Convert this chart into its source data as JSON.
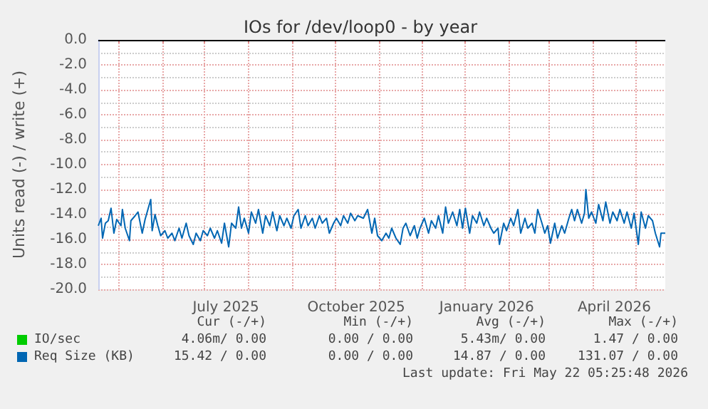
{
  "chart_data": {
    "type": "line",
    "title": "IOs for /dev/loop0 - by year",
    "ylabel": "Units read (-) / write (+)",
    "x": [
      "2025-04-17",
      "2025-04-19",
      "2025-04-20",
      "2025-04-22",
      "2025-04-24",
      "2025-04-26",
      "2025-04-28",
      "2025-04-30",
      "2025-05-03",
      "2025-05-04",
      "2025-05-06",
      "2025-05-09",
      "2025-05-10",
      "2025-05-13",
      "2025-05-15",
      "2025-05-18",
      "2025-05-20",
      "2025-05-22",
      "2025-05-24",
      "2025-05-25",
      "2025-05-27",
      "2025-05-29",
      "2025-05-31",
      "2025-06-03",
      "2025-06-05",
      "2025-06-08",
      "2025-06-10",
      "2025-06-13",
      "2025-06-15",
      "2025-06-18",
      "2025-06-20",
      "2025-06-23",
      "2025-06-25",
      "2025-06-28",
      "2025-06-30",
      "2025-07-03",
      "2025-07-05",
      "2025-07-08",
      "2025-07-10",
      "2025-07-13",
      "2025-07-15",
      "2025-07-18",
      "2025-07-20",
      "2025-07-23",
      "2025-07-25",
      "2025-07-27",
      "2025-07-29",
      "2025-08-01",
      "2025-08-03",
      "2025-08-06",
      "2025-08-08",
      "2025-08-11",
      "2025-08-13",
      "2025-08-16",
      "2025-08-18",
      "2025-08-21",
      "2025-08-23",
      "2025-08-26",
      "2025-08-28",
      "2025-08-31",
      "2025-09-02",
      "2025-09-05",
      "2025-09-07",
      "2025-09-10",
      "2025-09-12",
      "2025-09-15",
      "2025-09-17",
      "2025-09-20",
      "2025-09-22",
      "2025-09-25",
      "2025-09-27",
      "2025-09-30",
      "2025-10-02",
      "2025-10-05",
      "2025-10-07",
      "2025-10-10",
      "2025-10-12",
      "2025-10-15",
      "2025-10-17",
      "2025-10-21",
      "2025-10-24",
      "2025-10-27",
      "2025-10-29",
      "2025-10-31",
      "2025-11-03",
      "2025-11-06",
      "2025-11-08",
      "2025-11-10",
      "2025-11-13",
      "2025-11-16",
      "2025-11-18",
      "2025-11-20",
      "2025-11-23",
      "2025-11-26",
      "2025-11-28",
      "2025-11-30",
      "2025-12-03",
      "2025-12-06",
      "2025-12-08",
      "2025-12-11",
      "2025-12-13",
      "2025-12-16",
      "2025-12-18",
      "2025-12-20",
      "2025-12-23",
      "2025-12-26",
      "2025-12-28",
      "2025-12-30",
      "2026-01-01",
      "2026-01-04",
      "2026-01-06",
      "2026-01-09",
      "2026-01-11",
      "2026-01-14",
      "2026-01-16",
      "2026-01-19",
      "2026-01-21",
      "2026-01-24",
      "2026-01-25",
      "2026-01-28",
      "2026-01-30",
      "2026-02-02",
      "2026-02-04",
      "2026-02-07",
      "2026-02-09",
      "2026-02-12",
      "2026-02-14",
      "2026-02-17",
      "2026-02-19",
      "2026-02-21",
      "2026-02-24",
      "2026-02-26",
      "2026-02-28",
      "2026-03-02",
      "2026-03-05",
      "2026-03-07",
      "2026-03-10",
      "2026-03-12",
      "2026-03-15",
      "2026-03-17",
      "2026-03-19",
      "2026-03-21",
      "2026-03-24",
      "2026-03-26",
      "2026-03-27",
      "2026-03-29",
      "2026-03-31",
      "2026-04-03",
      "2026-04-05",
      "2026-04-08",
      "2026-04-10",
      "2026-04-13",
      "2026-04-15",
      "2026-04-18",
      "2026-04-20",
      "2026-04-23",
      "2026-04-25",
      "2026-04-28",
      "2026-04-30",
      "2026-05-03",
      "2026-05-05",
      "2026-05-08",
      "2026-05-10",
      "2026-05-13",
      "2026-05-15",
      "2026-05-18",
      "2026-05-19",
      "2026-05-22"
    ],
    "series": [
      {
        "name": "IO/sec",
        "color": "#00cc00",
        "values": [
          null,
          null,
          null,
          null,
          null,
          null,
          null,
          null,
          null,
          null,
          null,
          null,
          null,
          null,
          null,
          null,
          null,
          null,
          null,
          null,
          null,
          null,
          null,
          null,
          null,
          null,
          null,
          null,
          null,
          null,
          null,
          null,
          null,
          null,
          null,
          null,
          null,
          null,
          null,
          null,
          null,
          null,
          null,
          null,
          null,
          null,
          null,
          null,
          null,
          null,
          null,
          null,
          null,
          null,
          null,
          null,
          null,
          null,
          null,
          null,
          null,
          null,
          null,
          null,
          null,
          null,
          null,
          null,
          null,
          null,
          null,
          null,
          null,
          null,
          null,
          null,
          null,
          null,
          null,
          null,
          null,
          null,
          null,
          null,
          null,
          null,
          null,
          null,
          null,
          null,
          null,
          null,
          null,
          null,
          null,
          null,
          null,
          null,
          null,
          null,
          null,
          null,
          null,
          null,
          null,
          null,
          null,
          null,
          null,
          null,
          null,
          null,
          null,
          null,
          null,
          null,
          null,
          null,
          null,
          null,
          null,
          null,
          null,
          null,
          null,
          null,
          null,
          null,
          null,
          null,
          null,
          null,
          null,
          null,
          null,
          null,
          null,
          null,
          null,
          null,
          null,
          null,
          null,
          null,
          null,
          null,
          null,
          null,
          null,
          null,
          null,
          null,
          null,
          null,
          null,
          null,
          null,
          null,
          null,
          null,
          null,
          null,
          null,
          null,
          null,
          null,
          null,
          null
        ]
      },
      {
        "name": "Req Size (KB)",
        "color": "#0066b3",
        "values": [
          -14.9,
          -14.3,
          -15.9,
          -14.7,
          -14.5,
          -13.5,
          -15.5,
          -14.4,
          -14.9,
          -13.6,
          -15.1,
          -16.1,
          -14.5,
          -14.1,
          -13.8,
          -15.5,
          -14.4,
          -13.6,
          -12.8,
          -15.3,
          -14.0,
          -14.9,
          -15.7,
          -15.3,
          -15.9,
          -15.5,
          -16.1,
          -15.1,
          -15.9,
          -14.7,
          -15.7,
          -16.4,
          -15.5,
          -16.1,
          -15.3,
          -15.7,
          -15.1,
          -15.9,
          -15.3,
          -16.3,
          -14.7,
          -16.6,
          -14.7,
          -15.1,
          -13.4,
          -15.1,
          -14.3,
          -15.5,
          -13.8,
          -14.7,
          -13.6,
          -15.5,
          -14.1,
          -14.9,
          -13.8,
          -15.3,
          -14.1,
          -14.9,
          -14.3,
          -15.1,
          -14.1,
          -13.6,
          -15.1,
          -14.1,
          -14.9,
          -14.3,
          -15.1,
          -14.1,
          -14.7,
          -14.3,
          -15.5,
          -14.7,
          -14.3,
          -14.9,
          -14.1,
          -14.7,
          -13.9,
          -14.5,
          -14.1,
          -14.3,
          -13.6,
          -15.5,
          -14.3,
          -15.7,
          -16.1,
          -15.5,
          -15.9,
          -15.1,
          -15.9,
          -16.4,
          -15.1,
          -14.7,
          -15.7,
          -14.9,
          -15.9,
          -15.1,
          -14.3,
          -15.5,
          -14.5,
          -15.1,
          -14.1,
          -15.5,
          -13.4,
          -14.7,
          -13.8,
          -14.9,
          -13.6,
          -15.1,
          -13.5,
          -15.5,
          -14.1,
          -14.7,
          -13.8,
          -14.9,
          -14.3,
          -15.1,
          -15.5,
          -15.1,
          -16.4,
          -14.7,
          -15.3,
          -14.3,
          -14.9,
          -13.6,
          -15.5,
          -14.3,
          -15.1,
          -14.7,
          -15.5,
          -13.6,
          -14.7,
          -15.5,
          -14.9,
          -16.3,
          -14.7,
          -15.9,
          -14.9,
          -15.5,
          -14.3,
          -13.6,
          -14.5,
          -13.6,
          -14.7,
          -13.9,
          -12.0,
          -14.3,
          -13.8,
          -14.7,
          -13.2,
          -14.5,
          -13.0,
          -14.7,
          -13.8,
          -14.5,
          -13.6,
          -14.7,
          -13.8,
          -15.1,
          -13.9,
          -16.4,
          -13.8,
          -15.1,
          -14.1,
          -14.5,
          -15.5,
          -16.6,
          -15.5,
          -15.5
        ]
      }
    ],
    "xlim": [
      "2025-04-17",
      "2026-05-22"
    ],
    "xticks": [
      {
        "value": "2025-05-01",
        "label": null
      },
      {
        "value": "2025-06-01",
        "label": null
      },
      {
        "value": "2025-07-01",
        "label": null
      },
      {
        "value": "2025-07-16",
        "label": "July 2025"
      },
      {
        "value": "2025-08-01",
        "label": null
      },
      {
        "value": "2025-09-01",
        "label": null
      },
      {
        "value": "2025-10-01",
        "label": null
      },
      {
        "value": "2025-10-16",
        "label": "October 2025"
      },
      {
        "value": "2025-11-01",
        "label": null
      },
      {
        "value": "2025-12-01",
        "label": null
      },
      {
        "value": "2026-01-01",
        "label": null
      },
      {
        "value": "2026-01-16",
        "label": "January 2026"
      },
      {
        "value": "2026-02-01",
        "label": null
      },
      {
        "value": "2026-03-01",
        "label": null
      },
      {
        "value": "2026-04-01",
        "label": null
      },
      {
        "value": "2026-04-16",
        "label": "April 2026"
      },
      {
        "value": "2026-05-01",
        "label": null
      }
    ],
    "ylim": [
      -20,
      0
    ],
    "yticks": [
      {
        "value": -20,
        "label": "-20.0"
      },
      {
        "value": -19,
        "label": null
      },
      {
        "value": -18,
        "label": "-18.0"
      },
      {
        "value": -17,
        "label": null
      },
      {
        "value": -16,
        "label": "-16.0"
      },
      {
        "value": -15,
        "label": null
      },
      {
        "value": -14,
        "label": "-14.0"
      },
      {
        "value": -13,
        "label": null
      },
      {
        "value": -12,
        "label": "-12.0"
      },
      {
        "value": -11,
        "label": null
      },
      {
        "value": -10,
        "label": "-10.0"
      },
      {
        "value": -9,
        "label": null
      },
      {
        "value": -8,
        "label": "-8.0"
      },
      {
        "value": -7,
        "label": null
      },
      {
        "value": -6,
        "label": "-6.0"
      },
      {
        "value": -5,
        "label": null
      },
      {
        "value": -4,
        "label": "-4.0"
      },
      {
        "value": -3,
        "label": null
      },
      {
        "value": -2,
        "label": "-2.0"
      },
      {
        "value": -1,
        "label": null
      },
      {
        "value": 0,
        "label": "0.0"
      }
    ],
    "ref_lines": [
      {
        "axis": "y",
        "value": 0,
        "color": "#000000"
      }
    ],
    "grid": true,
    "legend": "bottom left",
    "marker": "none",
    "line_style": "solid",
    "annotations": [
      "Cur (-/+)",
      "Min (-/+)",
      "Avg (-/+)",
      "Max (-/+)",
      "4.06m/ 0.00",
      "0.00 / 0.00",
      "5.43m/ 0.00",
      "1.47 / 0.00",
      "15.42 / 0.00",
      "0.00 / 0.00",
      "14.87 / 0.00",
      "131.07 / 0.00",
      "Last update: Fri May 22 05:25:48 2026"
    ]
  }
}
